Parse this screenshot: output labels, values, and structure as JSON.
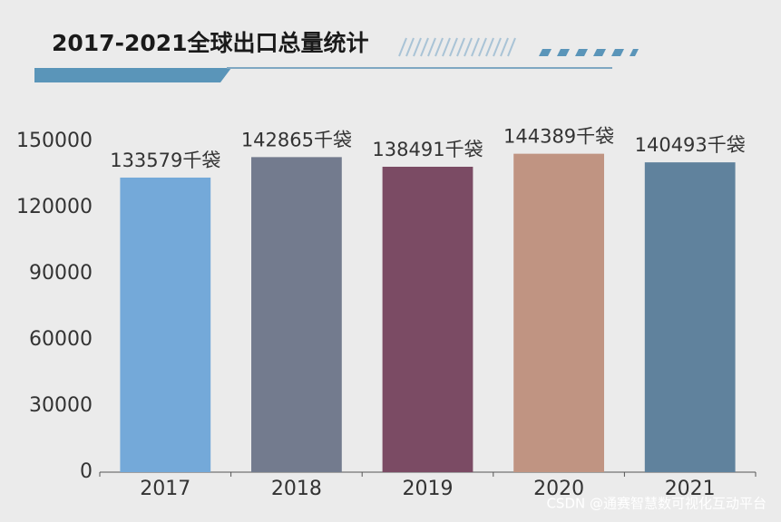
{
  "chart_data": {
    "type": "bar",
    "title": "2017-2021全球出口总量统计",
    "categories": [
      "2017",
      "2018",
      "2019",
      "2020",
      "2021"
    ],
    "values": [
      133579,
      142865,
      138491,
      144389,
      140493
    ],
    "value_labels": [
      "133579千袋",
      "142865千袋",
      "138491千袋",
      "144389千袋",
      "140493千袋"
    ],
    "colors": [
      "#74a9d9",
      "#737b8e",
      "#7b4b64",
      "#c09482",
      "#60829d"
    ],
    "ylim": [
      0,
      150000
    ],
    "yticks": [
      0,
      30000,
      60000,
      90000,
      120000,
      150000
    ],
    "grid": false
  },
  "watermark": "CSDN @通赛智慧数可视化互动平台"
}
